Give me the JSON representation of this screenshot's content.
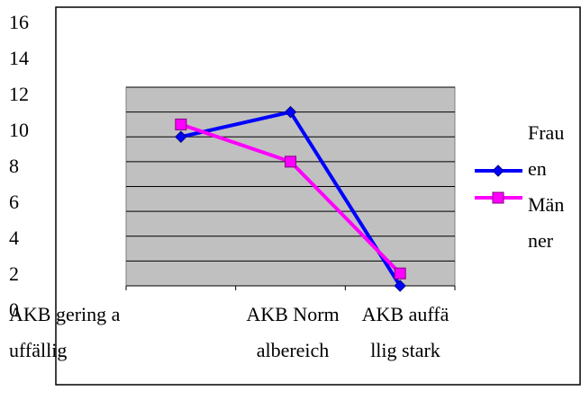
{
  "chart_data": {
    "type": "line",
    "categories": [
      "AKB gering auffällig",
      "AKB Normalbereich",
      "AKB auffällig stark"
    ],
    "series": [
      {
        "name": "Frauen",
        "color": "#0000ff",
        "marker": "diamond",
        "values": [
          12,
          14,
          0
        ]
      },
      {
        "name": "Männer",
        "color": "#ff00ff",
        "marker": "square",
        "values": [
          13,
          10,
          1
        ]
      }
    ],
    "ylim": [
      0,
      16
    ],
    "yticks": [
      0,
      2,
      4,
      6,
      8,
      10,
      12,
      14,
      16
    ],
    "grid": true,
    "legend": "right"
  }
}
